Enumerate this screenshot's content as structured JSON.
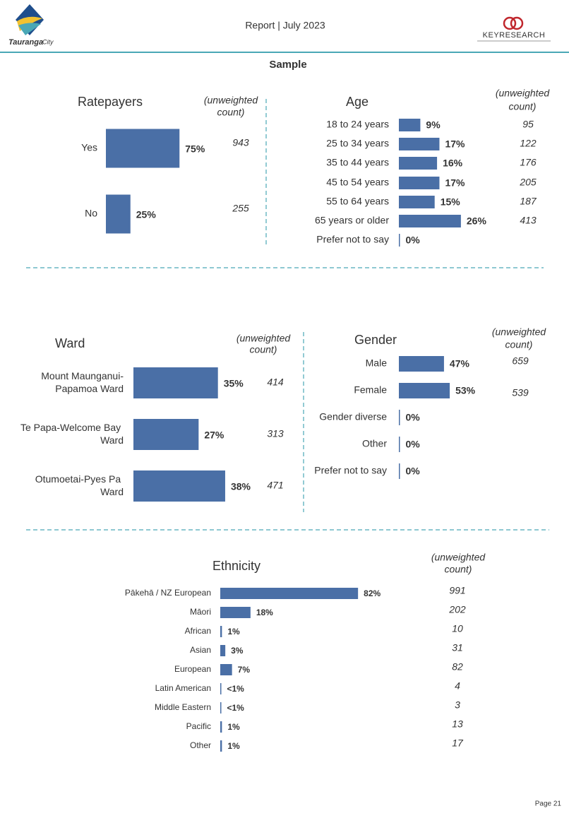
{
  "header": {
    "report": "Report | July 2023",
    "logo_text": "Tauranga",
    "logo_subtext": "City",
    "brand": "KEYRESEARCH"
  },
  "section_title": "Sample",
  "chart_data": [
    {
      "type": "bar",
      "title": "Ratepayers",
      "count_label": [
        "(unweighted",
        "count)"
      ],
      "color": "#4a6fa6",
      "categories": [
        "Yes",
        "No"
      ],
      "values": [
        75,
        25
      ],
      "value_labels": [
        "75%",
        "25%"
      ],
      "counts": [
        943,
        255
      ]
    },
    {
      "type": "bar",
      "title": "Age",
      "count_label": [
        "(unweighted",
        "count)"
      ],
      "color": "#4a6fa6",
      "categories": [
        "18 to 24 years",
        "25 to 34 years",
        "35 to 44 years",
        "45 to 54 years",
        "55 to 64 years",
        "65 years or older",
        "Prefer not to say"
      ],
      "values": [
        9,
        17,
        16,
        17,
        15,
        26,
        0
      ],
      "value_labels": [
        "9%",
        "17%",
        "16%",
        "17%",
        "15%",
        "26%",
        "0%"
      ],
      "counts": [
        95,
        122,
        176,
        205,
        187,
        413,
        null
      ]
    },
    {
      "type": "bar",
      "title": "Ward",
      "count_label": [
        "(unweighted",
        "count)"
      ],
      "color": "#4a6fa6",
      "categories": [
        "Mount Maunganui-Papamoa Ward",
        "Te Papa-Welcome Bay Ward",
        "Otumoetai-Pyes Pa Ward"
      ],
      "values": [
        35,
        27,
        38
      ],
      "value_labels": [
        "35%",
        "27%",
        "38%"
      ],
      "counts": [
        414,
        313,
        471
      ]
    },
    {
      "type": "bar",
      "title": "Gender",
      "count_label": [
        "(unweighted",
        "count)"
      ],
      "color": "#4a6fa6",
      "categories": [
        "Male",
        "Female",
        "Gender diverse",
        "Other",
        "Prefer not to say"
      ],
      "values": [
        47,
        53,
        0,
        0,
        0
      ],
      "value_labels": [
        "47%",
        "53%",
        "0%",
        "0%",
        "0%"
      ],
      "counts": [
        659,
        539,
        null,
        null,
        null
      ]
    },
    {
      "type": "bar",
      "title": "Ethnicity",
      "count_label": [
        "(unweighted",
        "count)"
      ],
      "color": "#4a6fa6",
      "categories": [
        "Pākehā / NZ European",
        "Māori",
        "African",
        "Asian",
        "European",
        "Latin American",
        "Middle Eastern",
        "Pacific",
        "Other"
      ],
      "values": [
        82,
        18,
        1,
        3,
        7,
        0.5,
        0.5,
        1,
        1
      ],
      "value_labels": [
        "82%",
        "18%",
        "1%",
        "3%",
        "7%",
        "<1%",
        "<1%",
        "1%",
        "1%"
      ],
      "counts": [
        991,
        202,
        10,
        31,
        82,
        4,
        3,
        13,
        17
      ]
    }
  ],
  "footer": {
    "page": "Page 21"
  }
}
